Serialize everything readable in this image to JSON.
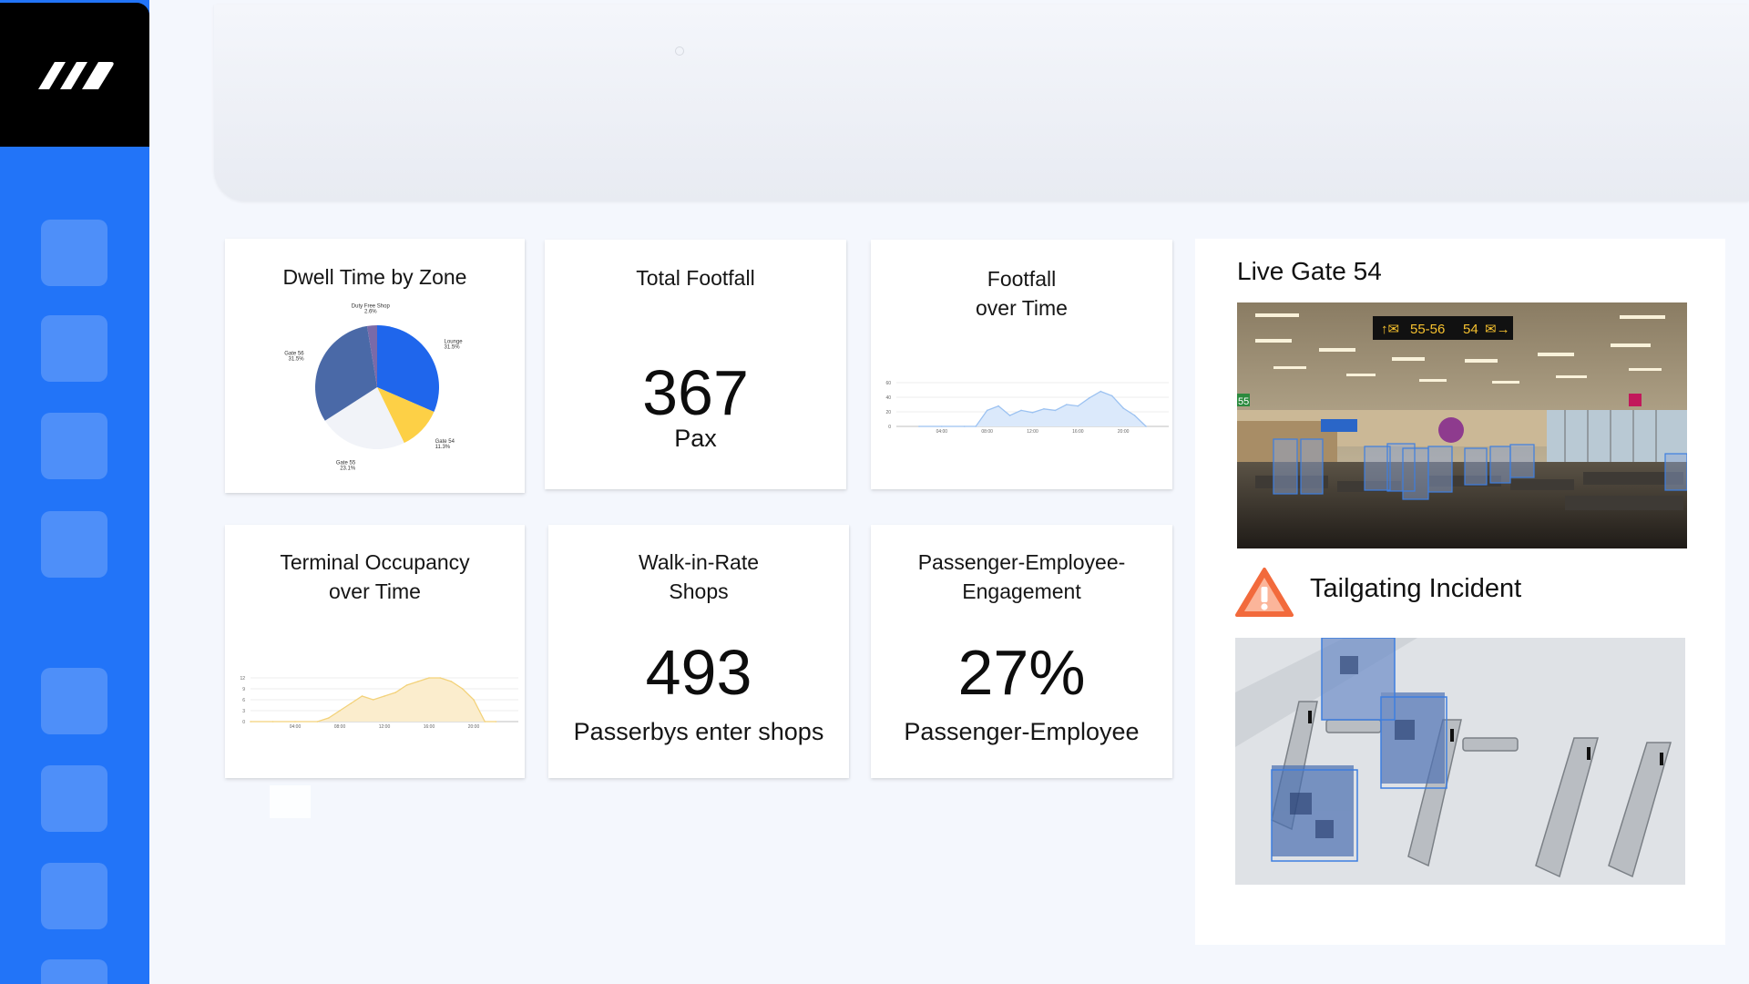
{
  "sidebar": {
    "logo": "brand-logo",
    "nav_items": [
      "nav-item-1",
      "nav-item-2",
      "nav-item-3",
      "nav-item-4",
      "nav-item-5",
      "nav-item-6",
      "nav-item-7",
      "nav-item-8"
    ],
    "accent_color": "#2274f8"
  },
  "cards": {
    "dwell": {
      "title": "Dwell Time by Zone"
    },
    "footfall": {
      "title": "Total Footfall",
      "value": "367",
      "unit": "Pax"
    },
    "footfall_time": {
      "title": "Footfall\nover Time"
    },
    "occupancy": {
      "title": "Terminal Occupancy\nover Time"
    },
    "walkin": {
      "title": "Walk-in-Rate\nShops",
      "value": "493",
      "unit": "Passerbys enter shops"
    },
    "engagement": {
      "title": "Passenger-Employee-\nEngagement",
      "value": "27%",
      "unit": "Passenger-Employee"
    }
  },
  "chart_data": [
    {
      "type": "pie",
      "title": "Dwell Time by Zone",
      "slices": [
        {
          "label": "Lounge",
          "value": 31.5,
          "pct_label": "31.5%",
          "color": "#1f66ec"
        },
        {
          "label": "Gate 54",
          "value": 11.3,
          "pct_label": "11.3%",
          "color": "#fdd046"
        },
        {
          "label": "Gate 55",
          "value": 23.1,
          "pct_label": "23.1%",
          "color": "#f1f3f8"
        },
        {
          "label": "Gate 56",
          "value": 31.5,
          "pct_label": "31.5%",
          "color": "#4a69a7"
        },
        {
          "label": "Duty Free Shop",
          "value": 2.6,
          "pct_label": "2.6%",
          "color": "#7a6aa8"
        }
      ]
    },
    {
      "type": "area",
      "title": "Footfall over Time",
      "x_ticks": [
        "04:00",
        "08:00",
        "12:00",
        "16:00",
        "20:00"
      ],
      "y_ticks": [
        "0",
        "20",
        "40",
        "60"
      ],
      "ylim": [
        0,
        60
      ],
      "x": [
        2,
        4,
        6,
        7,
        8,
        9,
        10,
        11,
        12,
        13,
        14,
        15,
        16,
        17,
        18,
        19,
        20,
        21,
        22
      ],
      "values": [
        0,
        0,
        0,
        0,
        22,
        28,
        15,
        22,
        19,
        24,
        22,
        30,
        28,
        39,
        48,
        42,
        25,
        15,
        0
      ],
      "color": "#9cc2f1",
      "fill": "#dbe9fb"
    },
    {
      "type": "area",
      "title": "Terminal Occupancy over Time",
      "x_ticks": [
        "04:00",
        "08:00",
        "12:00",
        "16:00",
        "20:00"
      ],
      "y_ticks": [
        "0",
        "3",
        "6",
        "9",
        "12"
      ],
      "ylim": [
        0,
        12
      ],
      "x": [
        0,
        2,
        4,
        6,
        7,
        8,
        9,
        10,
        11,
        12,
        13,
        14,
        15,
        16,
        17,
        18,
        19,
        20,
        21,
        22
      ],
      "values": [
        0,
        0,
        0,
        0,
        1,
        3,
        5,
        7,
        6,
        7,
        8,
        10,
        11,
        12,
        12,
        11,
        9,
        6,
        0,
        0
      ],
      "color": "#f3d27a",
      "fill": "#fbedcd"
    }
  ],
  "right_panel": {
    "live_title": "Live Gate 54",
    "sign_left": "55-56",
    "sign_right": "54",
    "gate_marker": "55",
    "incident_title": "Tailgating Incident",
    "warning_color": "#f26a3c",
    "box_color": "#3d7ee0"
  }
}
